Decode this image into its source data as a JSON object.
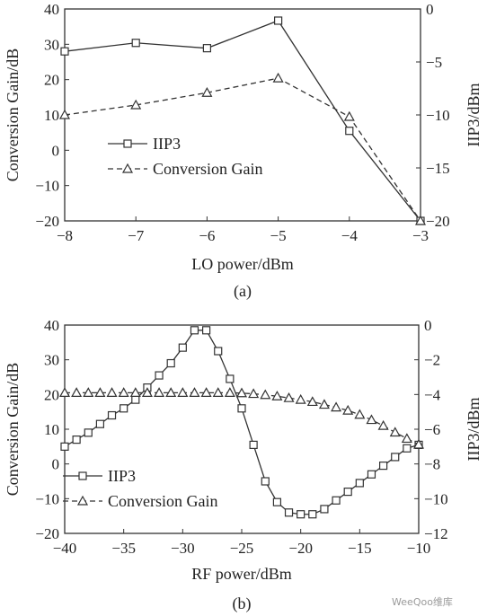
{
  "chart_data": [
    {
      "type": "line",
      "panel_label": "(a)",
      "xlabel": "LO power/dBm",
      "ylabel_left": "Conversion Gain/dB",
      "ylabel_right": "IIP3/dBm",
      "xlim": [
        -8,
        -3
      ],
      "ylim_left": [
        -20,
        40
      ],
      "ylim_right": [
        -20,
        0
      ],
      "xticks": [
        -8,
        -7,
        -6,
        -5,
        -4,
        -3
      ],
      "yticks_left": [
        40,
        30,
        20,
        10,
        0,
        -10,
        -20
      ],
      "yticks_right": [
        0,
        -5,
        -10,
        -15,
        -20
      ],
      "x": [
        -8,
        -7,
        -6,
        -5,
        -4,
        -3
      ],
      "series": [
        {
          "name": "IIP3",
          "axis": "right",
          "marker": "square",
          "line": "solid",
          "values": [
            -4.0,
            -3.2,
            -3.7,
            -1.1,
            -11.5,
            -20.0
          ]
        },
        {
          "name": "Conversion Gain",
          "axis": "left",
          "marker": "triangle",
          "line": "dashed",
          "values": [
            10.0,
            12.8,
            16.3,
            20.4,
            9.5,
            -20.0
          ]
        }
      ],
      "legend_position": "center-left"
    },
    {
      "type": "line",
      "panel_label": "(b)",
      "xlabel": "RF power/dBm",
      "ylabel_left": "Conversion Gain/dB",
      "ylabel_right": "IIP3/dBm",
      "xlim": [
        -40,
        -10
      ],
      "ylim_left": [
        -20,
        40
      ],
      "ylim_right": [
        -12,
        0
      ],
      "xticks": [
        -40,
        -35,
        -30,
        -25,
        -20,
        -15,
        -10
      ],
      "yticks_left": [
        40,
        30,
        20,
        10,
        0,
        -10,
        -20
      ],
      "yticks_right": [
        0,
        -2,
        -4,
        -6,
        -8,
        -10,
        -12
      ],
      "x": [
        -40,
        -39,
        -38,
        -37,
        -36,
        -35,
        -34,
        -33,
        -32,
        -31,
        -30,
        -29,
        -28,
        -27,
        -26,
        -25,
        -24,
        -23,
        -22,
        -21,
        -20,
        -19,
        -18,
        -17,
        -16,
        -15,
        -14,
        -13,
        -12,
        -11,
        -10
      ],
      "series": [
        {
          "name": "IIP3",
          "axis": "right",
          "marker": "square",
          "line": "solid",
          "values": [
            -7.0,
            -6.6,
            -6.2,
            -5.7,
            -5.2,
            -4.8,
            -4.3,
            -3.6,
            -2.9,
            -2.2,
            -1.3,
            -0.3,
            -0.3,
            -1.5,
            -3.1,
            -4.8,
            -6.9,
            -9.0,
            -10.2,
            -10.8,
            -10.9,
            -10.9,
            -10.6,
            -10.1,
            -9.6,
            -9.1,
            -8.6,
            -8.1,
            -7.6,
            -7.1,
            -6.9
          ]
        },
        {
          "name": "Conversion Gain",
          "axis": "left",
          "marker": "triangle",
          "line": "dashed",
          "values": [
            20.5,
            20.5,
            20.5,
            20.5,
            20.5,
            20.5,
            20.5,
            20.5,
            20.5,
            20.5,
            20.5,
            20.5,
            20.5,
            20.5,
            20.5,
            20.4,
            20.2,
            19.9,
            19.5,
            19.0,
            18.5,
            17.9,
            17.1,
            16.3,
            15.4,
            14.2,
            12.7,
            11.0,
            9.1,
            7.3,
            5.6
          ]
        }
      ],
      "legend_position": "bottom-left"
    }
  ],
  "watermark": "WeeQoo维库"
}
